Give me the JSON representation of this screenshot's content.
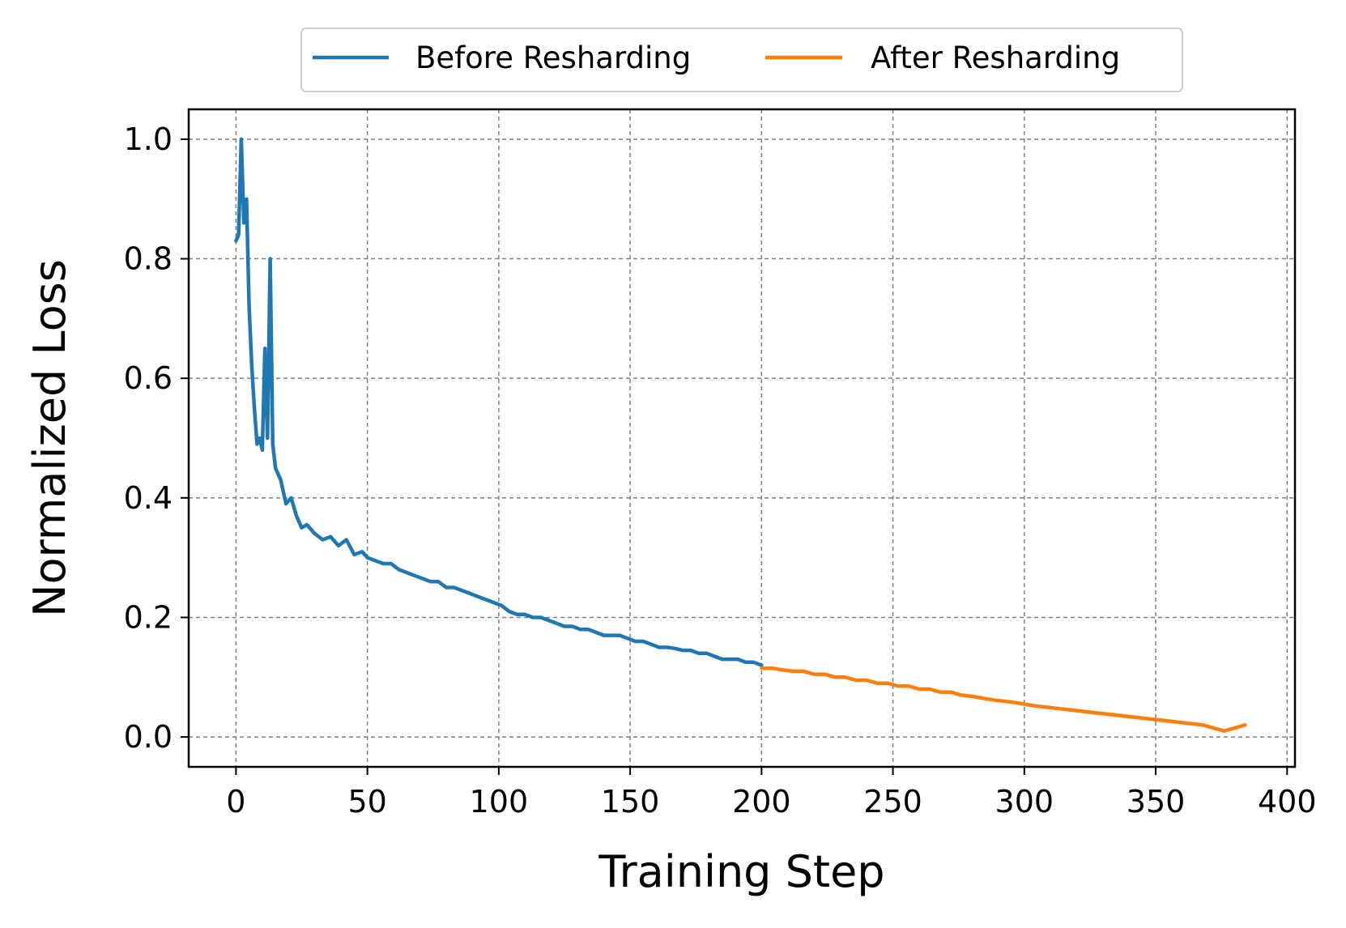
{
  "chart_data": {
    "type": "line",
    "xlabel": "Training Step",
    "ylabel": "Normalized Loss",
    "xlim": [
      -18,
      403
    ],
    "ylim": [
      -0.05,
      1.05
    ],
    "xticks": [
      0,
      50,
      100,
      150,
      200,
      250,
      300,
      350,
      400
    ],
    "yticks": [
      0.0,
      0.2,
      0.4,
      0.6,
      0.8,
      1.0
    ],
    "xtick_labels": [
      "0",
      "50",
      "100",
      "150",
      "200",
      "250",
      "300",
      "350",
      "400"
    ],
    "ytick_labels": [
      "0.0",
      "0.2",
      "0.4",
      "0.6",
      "0.8",
      "1.0"
    ],
    "grid": true,
    "legend_position": "top-center",
    "series": [
      {
        "name": "Before Resharding",
        "color": "#1f77b4",
        "points": [
          [
            0,
            0.83
          ],
          [
            1,
            0.84
          ],
          [
            2,
            1.0
          ],
          [
            3,
            0.86
          ],
          [
            4,
            0.9
          ],
          [
            5,
            0.72
          ],
          [
            6,
            0.62
          ],
          [
            7,
            0.55
          ],
          [
            8,
            0.49
          ],
          [
            9,
            0.5
          ],
          [
            10,
            0.48
          ],
          [
            11,
            0.65
          ],
          [
            12,
            0.5
          ],
          [
            13,
            0.8
          ],
          [
            14,
            0.49
          ],
          [
            15,
            0.45
          ],
          [
            17,
            0.43
          ],
          [
            19,
            0.39
          ],
          [
            21,
            0.4
          ],
          [
            23,
            0.37
          ],
          [
            25,
            0.35
          ],
          [
            27,
            0.355
          ],
          [
            30,
            0.34
          ],
          [
            33,
            0.33
          ],
          [
            36,
            0.335
          ],
          [
            39,
            0.32
          ],
          [
            42,
            0.33
          ],
          [
            45,
            0.305
          ],
          [
            48,
            0.31
          ],
          [
            50,
            0.3
          ],
          [
            53,
            0.295
          ],
          [
            56,
            0.29
          ],
          [
            59,
            0.29
          ],
          [
            62,
            0.28
          ],
          [
            65,
            0.275
          ],
          [
            68,
            0.27
          ],
          [
            71,
            0.265
          ],
          [
            74,
            0.26
          ],
          [
            77,
            0.26
          ],
          [
            80,
            0.25
          ],
          [
            83,
            0.25
          ],
          [
            86,
            0.245
          ],
          [
            89,
            0.24
          ],
          [
            92,
            0.235
          ],
          [
            95,
            0.23
          ],
          [
            98,
            0.225
          ],
          [
            101,
            0.22
          ],
          [
            104,
            0.21
          ],
          [
            107,
            0.205
          ],
          [
            110,
            0.205
          ],
          [
            113,
            0.2
          ],
          [
            116,
            0.2
          ],
          [
            119,
            0.195
          ],
          [
            122,
            0.19
          ],
          [
            125,
            0.185
          ],
          [
            128,
            0.185
          ],
          [
            131,
            0.18
          ],
          [
            134,
            0.18
          ],
          [
            137,
            0.175
          ],
          [
            140,
            0.17
          ],
          [
            143,
            0.17
          ],
          [
            146,
            0.17
          ],
          [
            149,
            0.165
          ],
          [
            152,
            0.16
          ],
          [
            155,
            0.16
          ],
          [
            158,
            0.155
          ],
          [
            161,
            0.15
          ],
          [
            164,
            0.15
          ],
          [
            167,
            0.148
          ],
          [
            170,
            0.145
          ],
          [
            173,
            0.145
          ],
          [
            176,
            0.14
          ],
          [
            179,
            0.14
          ],
          [
            182,
            0.135
          ],
          [
            185,
            0.13
          ],
          [
            188,
            0.13
          ],
          [
            191,
            0.13
          ],
          [
            194,
            0.125
          ],
          [
            197,
            0.125
          ],
          [
            200,
            0.12
          ]
        ]
      },
      {
        "name": "After Resharding",
        "color": "#ff7f0e",
        "points": [
          [
            200,
            0.115
          ],
          [
            204,
            0.115
          ],
          [
            208,
            0.112
          ],
          [
            212,
            0.11
          ],
          [
            216,
            0.11
          ],
          [
            220,
            0.105
          ],
          [
            224,
            0.105
          ],
          [
            228,
            0.1
          ],
          [
            232,
            0.1
          ],
          [
            236,
            0.095
          ],
          [
            240,
            0.095
          ],
          [
            244,
            0.09
          ],
          [
            248,
            0.09
          ],
          [
            252,
            0.085
          ],
          [
            256,
            0.085
          ],
          [
            260,
            0.08
          ],
          [
            264,
            0.08
          ],
          [
            268,
            0.075
          ],
          [
            272,
            0.075
          ],
          [
            276,
            0.07
          ],
          [
            280,
            0.068
          ],
          [
            284,
            0.065
          ],
          [
            288,
            0.062
          ],
          [
            292,
            0.06
          ],
          [
            296,
            0.058
          ],
          [
            300,
            0.055
          ],
          [
            304,
            0.052
          ],
          [
            308,
            0.05
          ],
          [
            312,
            0.048
          ],
          [
            316,
            0.046
          ],
          [
            320,
            0.044
          ],
          [
            324,
            0.042
          ],
          [
            328,
            0.04
          ],
          [
            332,
            0.038
          ],
          [
            336,
            0.036
          ],
          [
            340,
            0.034
          ],
          [
            344,
            0.032
          ],
          [
            348,
            0.03
          ],
          [
            352,
            0.028
          ],
          [
            356,
            0.026
          ],
          [
            360,
            0.024
          ],
          [
            364,
            0.022
          ],
          [
            368,
            0.02
          ],
          [
            372,
            0.015
          ],
          [
            376,
            0.01
          ],
          [
            380,
            0.015
          ],
          [
            384,
            0.02
          ]
        ]
      }
    ]
  }
}
